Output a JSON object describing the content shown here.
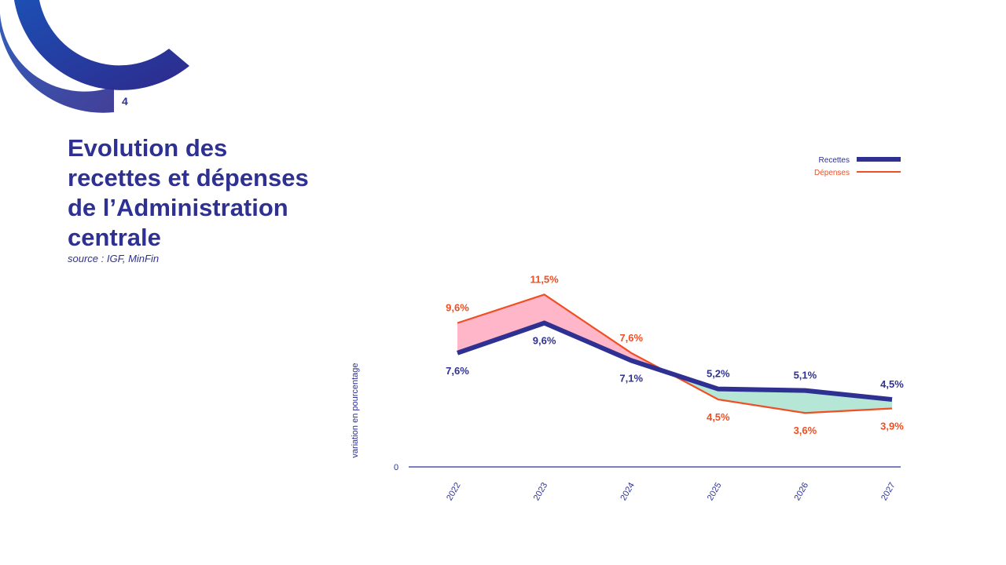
{
  "page": {
    "number": "4"
  },
  "header": {
    "title_lines": [
      "Evolution des",
      "recettes et dépenses",
      "de l’Administration",
      "centrale"
    ],
    "source": "source : IGF, MinFin"
  },
  "colors": {
    "recettes": "#2e3192",
    "depenses": "#f04e23",
    "fill_above": "#ffb6c8",
    "fill_below": "#b6e6d6",
    "arc_start": "#1d4fb4",
    "arc_end": "#2e2a8c"
  },
  "chart_data": {
    "type": "line",
    "categories": [
      "2022",
      "2023",
      "2024",
      "2025",
      "2026",
      "2027"
    ],
    "series": [
      {
        "name": "Recettes",
        "values": [
          7.6,
          9.6,
          7.1,
          5.2,
          5.1,
          4.5
        ],
        "labels": [
          "7,6%",
          "9,6%",
          "7,1%",
          "5,2%",
          "5,1%",
          "4,5%"
        ]
      },
      {
        "name": "Dépenses",
        "values": [
          9.6,
          11.5,
          7.6,
          4.5,
          3.6,
          3.9
        ],
        "labels": [
          "9,6%",
          "11,5%",
          "7,6%",
          "4,5%",
          "3,6%",
          "3,9%"
        ]
      }
    ],
    "ylabel": "variation en pourcentage",
    "y_tick_label": "0",
    "ylim": [
      0,
      12.5
    ],
    "legend": {
      "position": "top-right"
    }
  }
}
